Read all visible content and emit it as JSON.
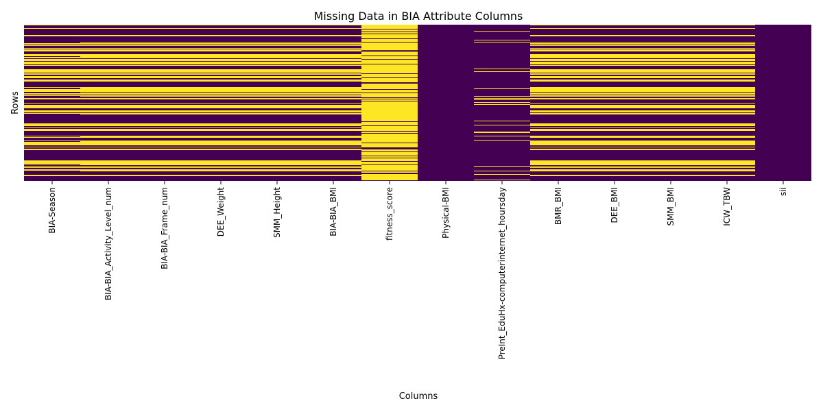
{
  "chart_data": {
    "type": "heatmap",
    "title": "Missing Data in BIA Attribute Columns",
    "xlabel": "Columns",
    "ylabel": "Rows",
    "columns": [
      "BIA-Season",
      "BIA-BIA_Activity_Level_num",
      "BIA-BIA_Frame_num",
      "DEE_Weight",
      "SMM_Height",
      "BIA-BIA_BMI",
      "fitness_score",
      "Physical-BMI",
      "PreInt_EduHx-computerinternet_hoursday",
      "BMR_BMI",
      "DEE_BMI",
      "SMM_BMI",
      "ICW_TBW",
      "sii"
    ],
    "value_meaning": {
      "1": "missing",
      "0": "present"
    },
    "colors": {
      "missing": "#fde725",
      "present": "#440154"
    },
    "colorbar": false,
    "row_count": 228,
    "bia_block_pattern": "YYYYYYYYYYYYYYYYYYYYYYYYYYYYYYYYYYYYYYYYYYYYYYYYYYYYYYYYYYYYYYYYYYYYYYYYYYYYYYYYYYYYYYYYYYYYYYYYYYYYYYYYYYYYYYYYYYYYYYYYYYYYYYYYYYYYYYYYYYYYYYYYYYYYYYYYYYYYYYYYYYYYYYYYYYYYYYYYYYYYYYYYYYYYYYYYYYYYYYYYYYYYYYYYYYYYYYYYYYYYYYYYY",
    "missing_fraction_approx": {
      "BIA-Season": 0.45,
      "BIA-BIA_Activity_Level_num": 0.5,
      "BIA-BIA_Frame_num": 0.5,
      "DEE_Weight": 0.5,
      "SMM_Height": 0.5,
      "BIA-BIA_BMI": 0.5,
      "fitness_score": 0.85,
      "Physical-BMI": 0.0,
      "PreInt_EduHx-computerinternet_hoursday": 0.08,
      "BMR_BMI": 0.5,
      "DEE_BMI": 0.5,
      "SMM_BMI": 0.5,
      "ICW_TBW": 0.5,
      "sii": 0.0
    }
  }
}
